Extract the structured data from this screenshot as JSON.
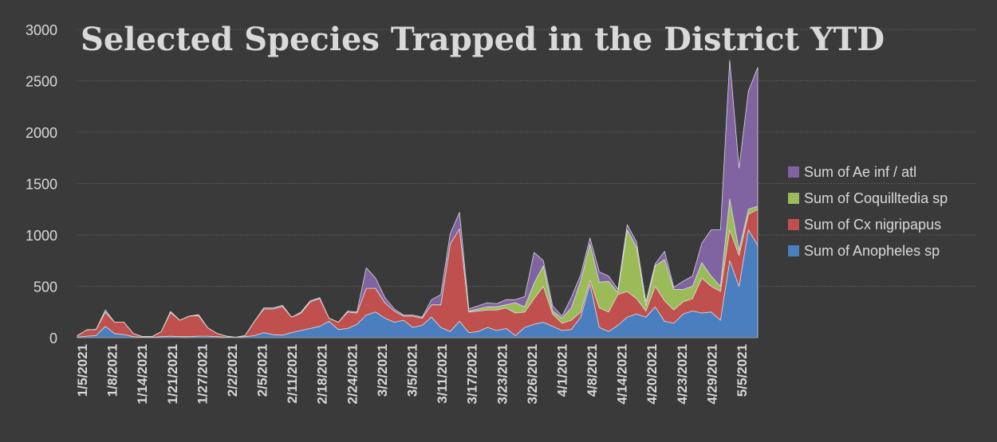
{
  "chart_data": {
    "type": "area",
    "stacked": true,
    "title": "Selected Species Trapped in the District YTD",
    "xlabel": "",
    "ylabel": "",
    "ylim": [
      0,
      3000
    ],
    "yticks": [
      0,
      500,
      1000,
      1500,
      2000,
      2500,
      3000
    ],
    "grid": true,
    "legend_position": "right",
    "x_labels": [
      "1/5/2021",
      "1/8/2021",
      "1/14/2021",
      "1/21/2021",
      "1/27/2021",
      "2/2/2021",
      "2/5/2021",
      "2/11/2021",
      "2/18/2021",
      "2/24/2021",
      "3/2/2021",
      "3/5/2021",
      "3/11/2021",
      "3/17/2021",
      "3/23/2021",
      "3/26/2021",
      "4/1/2021",
      "4/8/2021",
      "4/14/2021",
      "4/20/2021",
      "4/23/2021",
      "4/29/2021",
      "5/5/2021"
    ],
    "series": [
      {
        "name": "Sum of Anopheles sp",
        "color": "#4a7ebf",
        "values": [
          5,
          15,
          20,
          110,
          40,
          30,
          10,
          5,
          5,
          10,
          15,
          10,
          10,
          15,
          15,
          10,
          5,
          5,
          10,
          20,
          50,
          30,
          25,
          50,
          70,
          90,
          110,
          160,
          80,
          90,
          130,
          220,
          250,
          190,
          150,
          170,
          100,
          120,
          200,
          100,
          60,
          160,
          50,
          60,
          100,
          70,
          90,
          20,
          100,
          130,
          150,
          110,
          70,
          80,
          200,
          520,
          100,
          60,
          120,
          200,
          230,
          200,
          300,
          160,
          140,
          230,
          260,
          240,
          250,
          170,
          750,
          500,
          1050,
          900
        ]
      },
      {
        "name": "Sum of Cx nigripapus",
        "color": "#c0504d",
        "values": [
          15,
          60,
          60,
          140,
          110,
          120,
          30,
          5,
          5,
          50,
          230,
          160,
          200,
          200,
          80,
          30,
          10,
          0,
          10,
          140,
          230,
          250,
          280,
          150,
          170,
          260,
          270,
          30,
          70,
          160,
          110,
          260,
          230,
          150,
          110,
          40,
          110,
          70,
          120,
          220,
          850,
          900,
          200,
          200,
          170,
          200,
          200,
          220,
          150,
          250,
          350,
          120,
          70,
          90,
          50,
          40,
          190,
          190,
          300,
          250,
          150,
          60,
          200,
          200,
          130,
          120,
          120,
          340,
          250,
          280,
          300,
          300,
          150,
          350
        ]
      },
      {
        "name": "Sum of Coquilltedia sp",
        "color": "#9bbb59",
        "values": [
          0,
          0,
          0,
          0,
          0,
          0,
          0,
          0,
          0,
          0,
          0,
          0,
          0,
          0,
          0,
          0,
          0,
          0,
          0,
          0,
          0,
          0,
          0,
          0,
          0,
          0,
          0,
          0,
          0,
          0,
          0,
          0,
          0,
          0,
          0,
          0,
          0,
          0,
          0,
          0,
          0,
          0,
          10,
          20,
          30,
          30,
          30,
          100,
          50,
          150,
          200,
          30,
          50,
          120,
          300,
          350,
          250,
          300,
          20,
          600,
          500,
          50,
          200,
          400,
          200,
          120,
          120,
          150,
          100,
          50,
          300,
          50,
          50,
          30
        ]
      },
      {
        "name": "Sum of Ae inf / atl",
        "color": "#8064a2",
        "values": [
          0,
          0,
          0,
          20,
          0,
          0,
          0,
          0,
          0,
          0,
          10,
          0,
          0,
          10,
          0,
          0,
          0,
          0,
          0,
          0,
          10,
          10,
          10,
          0,
          10,
          10,
          10,
          0,
          0,
          10,
          10,
          200,
          100,
          50,
          20,
          10,
          10,
          10,
          50,
          100,
          100,
          160,
          20,
          30,
          40,
          30,
          50,
          30,
          100,
          300,
          50,
          50,
          20,
          100,
          60,
          60,
          100,
          50,
          30,
          50,
          50,
          40,
          20,
          80,
          20,
          80,
          100,
          190,
          450,
          550,
          1350,
          800,
          1150,
          1350
        ]
      }
    ]
  }
}
